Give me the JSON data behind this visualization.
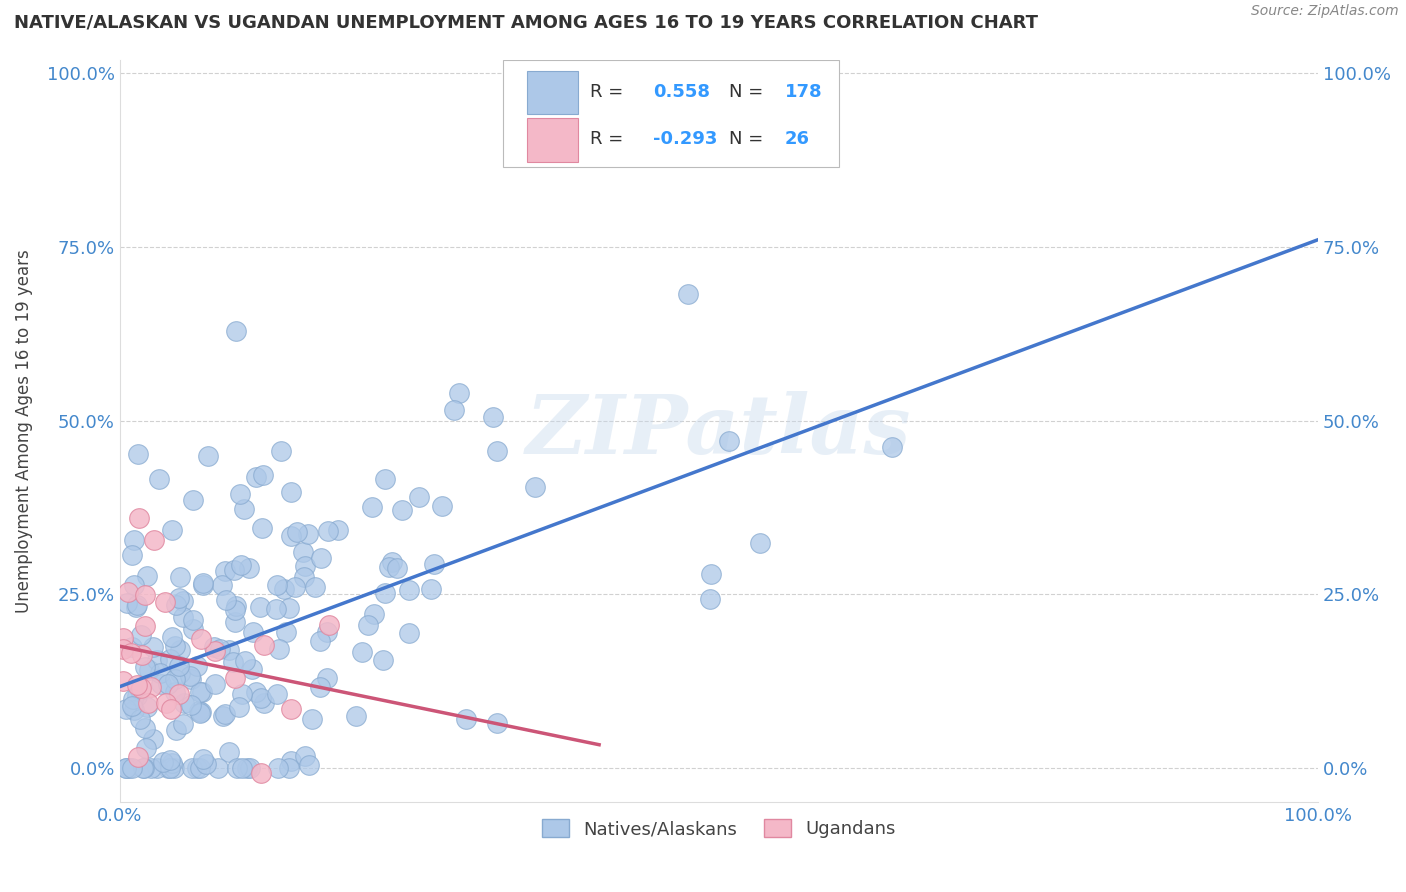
{
  "title": "NATIVE/ALASKAN VS UGANDAN UNEMPLOYMENT AMONG AGES 16 TO 19 YEARS CORRELATION CHART",
  "source": "Source: ZipAtlas.com",
  "ylabel": "Unemployment Among Ages 16 to 19 years",
  "xlim": [
    0.0,
    1.0
  ],
  "ylim": [
    -0.05,
    1.02
  ],
  "xtick_positions": [
    0.0,
    1.0
  ],
  "xtick_labels": [
    "0.0%",
    "100.0%"
  ],
  "ytick_positions": [
    0.0,
    0.25,
    0.5,
    0.75,
    1.0
  ],
  "ytick_labels": [
    "0.0%",
    "25.0%",
    "50.0%",
    "75.0%",
    "100.0%"
  ],
  "background_color": "#ffffff",
  "grid_color": "#cccccc",
  "native_color": "#adc8e8",
  "native_edge_color": "#88aad0",
  "ugandan_color": "#f4b8c8",
  "ugandan_edge_color": "#e088a0",
  "native_R": 0.558,
  "native_N": 178,
  "ugandan_R": -0.293,
  "ugandan_N": 26,
  "native_line_color": "#4477cc",
  "ugandan_line_color": "#cc5577",
  "legend_text_color": "#3399ff",
  "watermark": "ZIPatlas",
  "title_color": "#333333",
  "axis_label_color": "#444444",
  "tick_color": "#4488cc"
}
